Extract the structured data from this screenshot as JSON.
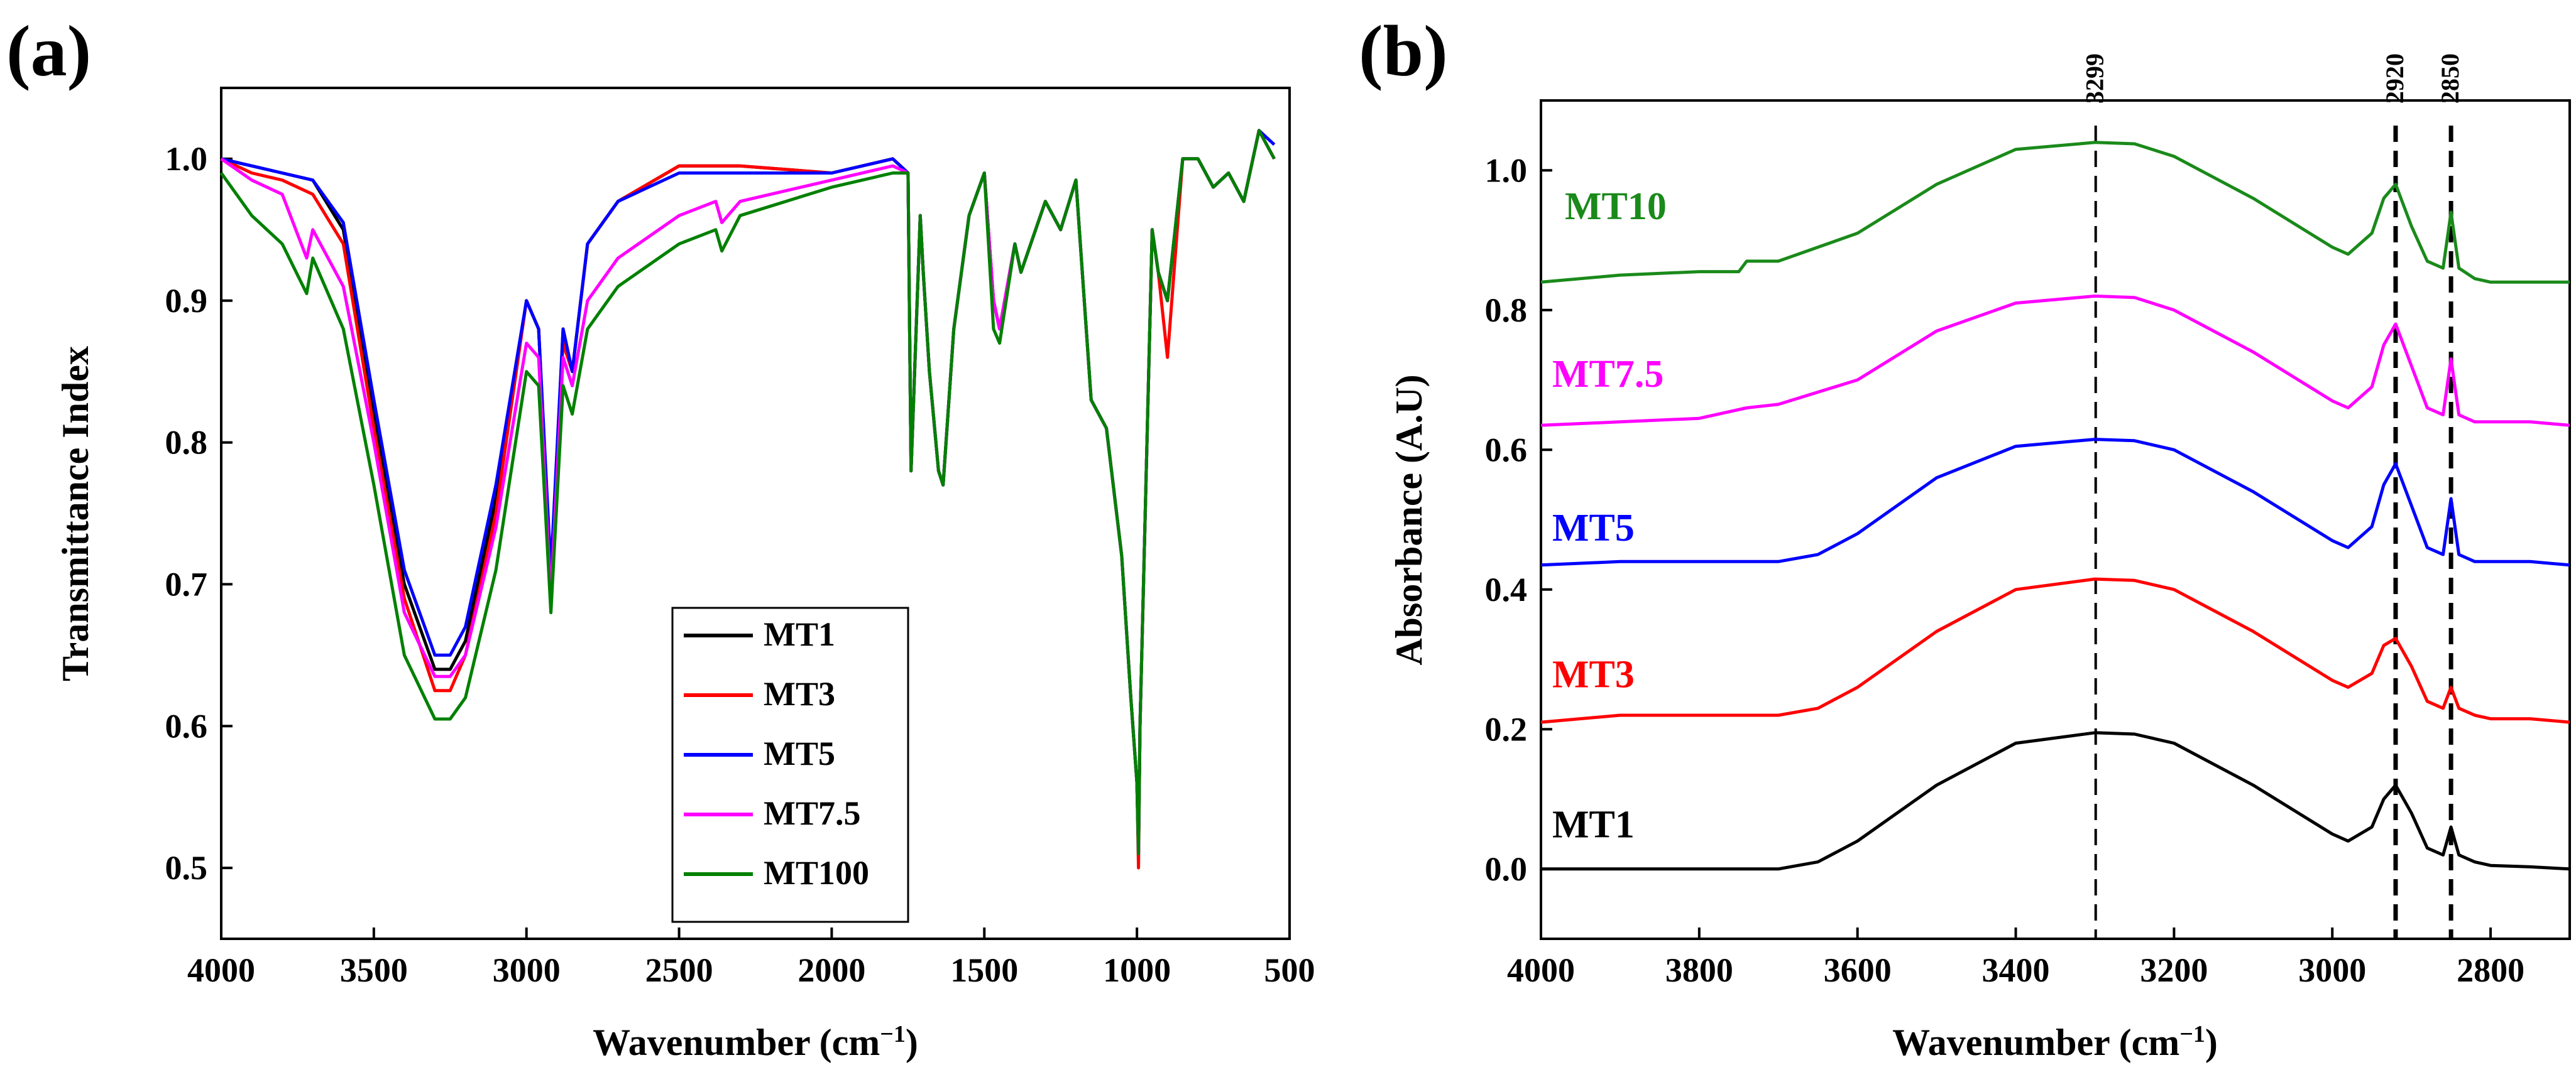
{
  "chart_data": [
    {
      "panel": "(a)",
      "type": "line",
      "xlabel": "Wavenumber (cm",
      "xlabel_sup": "−1",
      "xlabel_end": ")",
      "ylabel": "Transmittance Index",
      "xlim": [
        4000,
        500
      ],
      "ylim": [
        0.45,
        1.05
      ],
      "xticks": [
        4000,
        3500,
        3000,
        2500,
        2000,
        1500,
        1000,
        500
      ],
      "yticks": [
        0.5,
        0.6,
        0.7,
        0.8,
        0.9,
        1.0
      ],
      "ytick_labels": [
        "0.5",
        "0.6",
        "0.7",
        "0.8",
        "0.9",
        "1.0"
      ],
      "legend": "bottom-center",
      "series": [
        {
          "name": "MT1",
          "color": "#000000",
          "x": [
            4000,
            3900,
            3800,
            3700,
            3600,
            3500,
            3400,
            3300,
            3250,
            3200,
            3100,
            3000,
            2960,
            2920,
            2880,
            2850,
            2800,
            2700,
            2500,
            2300,
            2000,
            1800,
            1750,
            1740,
            1710,
            1700,
            1680,
            1650,
            1635,
            1600,
            1550,
            1500,
            1470,
            1450,
            1400,
            1380,
            1300,
            1250,
            1200,
            1150,
            1100,
            1050,
            1020,
            1000,
            995,
            990,
            950,
            930,
            900,
            850,
            800,
            750,
            700,
            650,
            600,
            550
          ],
          "y": [
            1.0,
            0.995,
            0.99,
            0.985,
            0.95,
            0.82,
            0.7,
            0.64,
            0.64,
            0.66,
            0.76,
            0.9,
            0.88,
            0.7,
            0.88,
            0.85,
            0.94,
            0.97,
            0.995,
            0.995,
            0.99,
            1.0,
            0.99,
            0.78,
            0.96,
            0.92,
            0.85,
            0.78,
            0.77,
            0.88,
            0.96,
            0.99,
            0.9,
            0.88,
            0.94,
            0.92,
            0.97,
            0.95,
            0.985,
            0.83,
            0.81,
            0.72,
            0.62,
            0.56,
            0.51,
            0.6,
            0.95,
            0.92,
            0.9,
            1.0,
            1.0,
            0.98,
            0.99,
            0.97,
            1.02,
            1.0
          ]
        },
        {
          "name": "MT3",
          "color": "#ff0000",
          "x": [
            4000,
            3900,
            3800,
            3700,
            3600,
            3500,
            3400,
            3300,
            3250,
            3200,
            3100,
            3000,
            2960,
            2920,
            2880,
            2850,
            2800,
            2700,
            2500,
            2300,
            2000,
            1800,
            1750,
            1740,
            1710,
            1700,
            1680,
            1650,
            1635,
            1600,
            1550,
            1500,
            1470,
            1450,
            1400,
            1380,
            1300,
            1250,
            1200,
            1150,
            1100,
            1050,
            1020,
            1000,
            995,
            990,
            950,
            930,
            900,
            850,
            800,
            750,
            700,
            650,
            600,
            550
          ],
          "y": [
            1.0,
            0.99,
            0.985,
            0.975,
            0.94,
            0.81,
            0.69,
            0.625,
            0.625,
            0.65,
            0.75,
            0.9,
            0.88,
            0.7,
            0.87,
            0.85,
            0.94,
            0.97,
            0.995,
            0.995,
            0.99,
            1.0,
            0.99,
            0.78,
            0.96,
            0.92,
            0.85,
            0.78,
            0.77,
            0.88,
            0.96,
            0.99,
            0.9,
            0.88,
            0.94,
            0.92,
            0.97,
            0.95,
            0.985,
            0.83,
            0.81,
            0.72,
            0.62,
            0.56,
            0.5,
            0.6,
            0.95,
            0.92,
            0.86,
            1.0,
            1.0,
            0.98,
            0.99,
            0.97,
            1.02,
            1.0
          ]
        },
        {
          "name": "MT5",
          "color": "#0000ff",
          "x": [
            4000,
            3900,
            3800,
            3700,
            3600,
            3500,
            3400,
            3300,
            3250,
            3200,
            3100,
            3000,
            2960,
            2920,
            2880,
            2850,
            2800,
            2700,
            2500,
            2300,
            2000,
            1800,
            1750,
            1740,
            1710,
            1700,
            1680,
            1650,
            1635,
            1600,
            1550,
            1500,
            1470,
            1450,
            1400,
            1380,
            1300,
            1250,
            1200,
            1150,
            1100,
            1050,
            1020,
            1000,
            995,
            990,
            950,
            930,
            900,
            850,
            800,
            750,
            700,
            650,
            600,
            550
          ],
          "y": [
            1.0,
            0.995,
            0.99,
            0.985,
            0.955,
            0.83,
            0.71,
            0.65,
            0.65,
            0.67,
            0.77,
            0.9,
            0.88,
            0.71,
            0.88,
            0.85,
            0.94,
            0.97,
            0.99,
            0.99,
            0.99,
            1.0,
            0.99,
            0.78,
            0.96,
            0.92,
            0.85,
            0.78,
            0.77,
            0.88,
            0.96,
            0.99,
            0.9,
            0.88,
            0.94,
            0.92,
            0.97,
            0.95,
            0.985,
            0.83,
            0.81,
            0.72,
            0.62,
            0.56,
            0.51,
            0.6,
            0.95,
            0.92,
            0.9,
            1.0,
            1.0,
            0.98,
            0.99,
            0.97,
            1.02,
            1.01
          ]
        },
        {
          "name": "MT7.5",
          "color": "#ff00ff",
          "x": [
            4000,
            3900,
            3800,
            3720,
            3700,
            3600,
            3500,
            3400,
            3300,
            3250,
            3200,
            3100,
            3000,
            2960,
            2920,
            2880,
            2850,
            2800,
            2700,
            2500,
            2380,
            2360,
            2300,
            2000,
            1800,
            1750,
            1740,
            1710,
            1700,
            1680,
            1650,
            1635,
            1600,
            1550,
            1500,
            1470,
            1450,
            1400,
            1380,
            1300,
            1250,
            1200,
            1150,
            1100,
            1050,
            1020,
            1000,
            995,
            990,
            950,
            930,
            900,
            850,
            800,
            750,
            700,
            650,
            600,
            550
          ],
          "y": [
            1.0,
            0.985,
            0.975,
            0.93,
            0.95,
            0.91,
            0.8,
            0.68,
            0.635,
            0.635,
            0.65,
            0.74,
            0.87,
            0.86,
            0.69,
            0.86,
            0.84,
            0.9,
            0.93,
            0.96,
            0.97,
            0.955,
            0.97,
            0.985,
            0.995,
            0.99,
            0.78,
            0.96,
            0.92,
            0.85,
            0.78,
            0.77,
            0.88,
            0.96,
            0.99,
            0.9,
            0.88,
            0.94,
            0.92,
            0.97,
            0.95,
            0.985,
            0.83,
            0.81,
            0.72,
            0.62,
            0.56,
            0.51,
            0.6,
            0.95,
            0.92,
            0.9,
            1.0,
            1.0,
            0.98,
            0.99,
            0.97,
            1.02,
            1.0
          ]
        },
        {
          "name": "MT100",
          "color": "#008000",
          "x": [
            4000,
            3900,
            3800,
            3720,
            3700,
            3600,
            3500,
            3400,
            3300,
            3250,
            3200,
            3100,
            3000,
            2960,
            2920,
            2880,
            2850,
            2800,
            2700,
            2500,
            2380,
            2360,
            2300,
            2000,
            1800,
            1750,
            1740,
            1710,
            1700,
            1680,
            1650,
            1635,
            1600,
            1550,
            1500,
            1470,
            1450,
            1400,
            1380,
            1300,
            1250,
            1200,
            1150,
            1100,
            1050,
            1020,
            1000,
            995,
            990,
            950,
            930,
            900,
            850,
            800,
            750,
            700,
            650,
            600,
            550
          ],
          "y": [
            0.99,
            0.96,
            0.94,
            0.905,
            0.93,
            0.88,
            0.77,
            0.65,
            0.605,
            0.605,
            0.62,
            0.71,
            0.85,
            0.84,
            0.68,
            0.84,
            0.82,
            0.88,
            0.91,
            0.94,
            0.95,
            0.935,
            0.96,
            0.98,
            0.99,
            0.99,
            0.78,
            0.96,
            0.92,
            0.85,
            0.78,
            0.77,
            0.88,
            0.96,
            0.99,
            0.88,
            0.87,
            0.94,
            0.92,
            0.97,
            0.95,
            0.985,
            0.83,
            0.81,
            0.72,
            0.62,
            0.56,
            0.51,
            0.6,
            0.95,
            0.92,
            0.9,
            1.0,
            1.0,
            0.98,
            0.99,
            0.97,
            1.02,
            1.0
          ]
        }
      ]
    },
    {
      "panel": "(b)",
      "type": "line",
      "xlabel": "Wavenumber (cm",
      "xlabel_sup": "−1",
      "xlabel_end": ")",
      "ylabel": "Absorbance (A.U)",
      "xlim": [
        4000,
        2700
      ],
      "ylim": [
        -0.1,
        1.1
      ],
      "xticks": [
        4000,
        3800,
        3600,
        3400,
        3200,
        3000,
        2800
      ],
      "yticks": [
        0.0,
        0.2,
        0.4,
        0.6,
        0.8,
        1.0
      ],
      "ytick_labels": [
        "0.0",
        "0.2",
        "0.4",
        "0.6",
        "0.8",
        "1.0"
      ],
      "peak_lines": [
        {
          "x": 3299,
          "label": "3299"
        },
        {
          "x": 2920,
          "label": "2920"
        },
        {
          "x": 2850,
          "label": "2850"
        }
      ],
      "series": [
        {
          "name": "MT1",
          "color": "#000000",
          "x": [
            4000,
            3900,
            3800,
            3700,
            3650,
            3600,
            3500,
            3400,
            3300,
            3250,
            3200,
            3100,
            3000,
            2980,
            2950,
            2935,
            2920,
            2900,
            2880,
            2860,
            2850,
            2840,
            2820,
            2800,
            2750,
            2700
          ],
          "y": [
            0.0,
            0.0,
            0.0,
            0.0,
            0.01,
            0.04,
            0.12,
            0.18,
            0.195,
            0.193,
            0.18,
            0.12,
            0.05,
            0.04,
            0.06,
            0.1,
            0.12,
            0.08,
            0.03,
            0.02,
            0.06,
            0.02,
            0.01,
            0.005,
            0.003,
            0.0
          ]
        },
        {
          "name": "MT3",
          "color": "#ff0000",
          "x": [
            4000,
            3900,
            3800,
            3700,
            3650,
            3600,
            3500,
            3400,
            3300,
            3250,
            3200,
            3100,
            3000,
            2980,
            2950,
            2935,
            2920,
            2900,
            2880,
            2860,
            2850,
            2840,
            2820,
            2800,
            2750,
            2700
          ],
          "y": [
            0.21,
            0.22,
            0.22,
            0.22,
            0.23,
            0.26,
            0.34,
            0.4,
            0.415,
            0.413,
            0.4,
            0.34,
            0.27,
            0.26,
            0.28,
            0.32,
            0.33,
            0.29,
            0.24,
            0.23,
            0.26,
            0.23,
            0.22,
            0.215,
            0.215,
            0.21
          ]
        },
        {
          "name": "MT5",
          "color": "#0000ff",
          "x": [
            4000,
            3900,
            3800,
            3700,
            3650,
            3600,
            3500,
            3400,
            3300,
            3250,
            3200,
            3100,
            3000,
            2980,
            2950,
            2935,
            2920,
            2900,
            2880,
            2860,
            2850,
            2840,
            2820,
            2800,
            2750,
            2700
          ],
          "y": [
            0.435,
            0.44,
            0.44,
            0.44,
            0.45,
            0.48,
            0.56,
            0.605,
            0.615,
            0.613,
            0.6,
            0.54,
            0.47,
            0.46,
            0.49,
            0.55,
            0.58,
            0.52,
            0.46,
            0.45,
            0.53,
            0.45,
            0.44,
            0.44,
            0.44,
            0.435
          ]
        },
        {
          "name": "MT7.5",
          "color": "#ff00ff",
          "x": [
            4000,
            3900,
            3800,
            3740,
            3700,
            3600,
            3500,
            3400,
            3300,
            3250,
            3200,
            3100,
            3000,
            2980,
            2950,
            2935,
            2920,
            2900,
            2880,
            2860,
            2850,
            2840,
            2820,
            2800,
            2750,
            2700
          ],
          "y": [
            0.635,
            0.64,
            0.645,
            0.66,
            0.665,
            0.7,
            0.77,
            0.81,
            0.82,
            0.818,
            0.8,
            0.74,
            0.67,
            0.66,
            0.69,
            0.75,
            0.78,
            0.72,
            0.66,
            0.65,
            0.73,
            0.65,
            0.64,
            0.64,
            0.64,
            0.635
          ]
        },
        {
          "name": "MT10",
          "color": "#1a8a1a",
          "x": [
            4000,
            3900,
            3800,
            3750,
            3740,
            3700,
            3600,
            3500,
            3400,
            3300,
            3250,
            3200,
            3100,
            3000,
            2980,
            2950,
            2935,
            2920,
            2900,
            2880,
            2860,
            2850,
            2840,
            2820,
            2800,
            2750,
            2700
          ],
          "y": [
            0.84,
            0.85,
            0.855,
            0.855,
            0.87,
            0.87,
            0.91,
            0.98,
            1.03,
            1.04,
            1.038,
            1.02,
            0.96,
            0.89,
            0.88,
            0.91,
            0.96,
            0.98,
            0.92,
            0.87,
            0.86,
            0.94,
            0.86,
            0.845,
            0.84,
            0.84,
            0.84
          ]
        }
      ]
    }
  ],
  "legend_a": [
    "MT1",
    "MT3",
    "MT5",
    "MT7.5",
    "MT100"
  ],
  "labels_b": [
    "MT10",
    "MT7.5",
    "MT5",
    "MT3",
    "MT1"
  ]
}
